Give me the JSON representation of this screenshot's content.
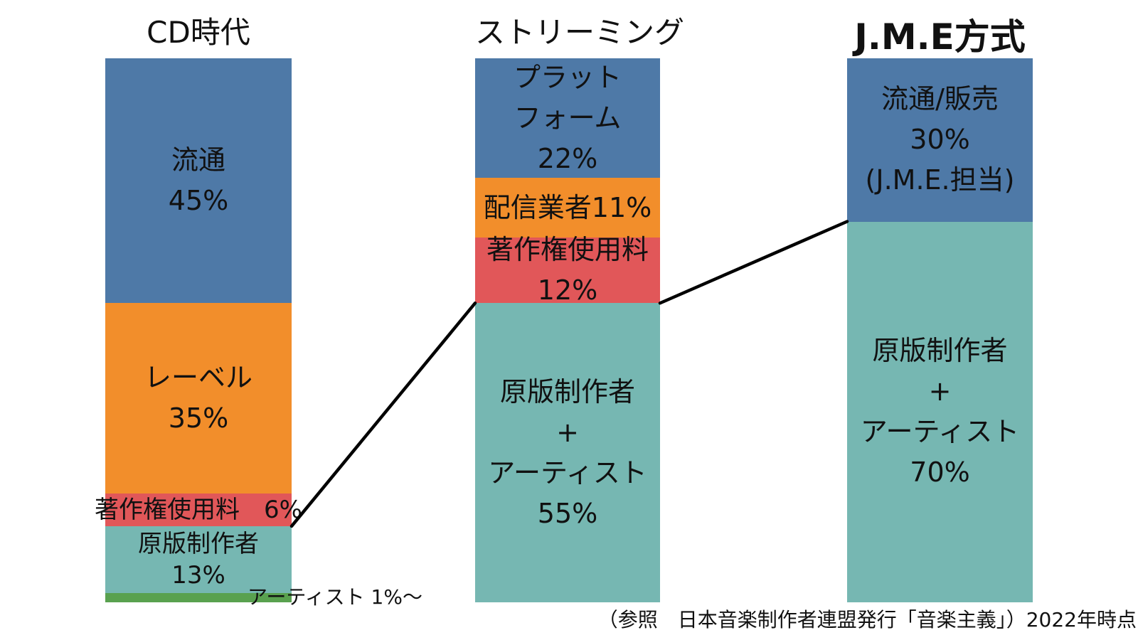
{
  "chart_data": {
    "type": "bar",
    "subtype": "100%-stacked-vertical",
    "unit": "%",
    "axis": "none",
    "legend": "none",
    "palette": {
      "blue": "#4e79a7",
      "orange": "#f28e2b",
      "red": "#e15759",
      "teal": "#76b7b2",
      "green": "#59a14f",
      "connector": "#000000"
    },
    "bars": [
      {
        "title": "CD時代",
        "segments": [
          {
            "name": "流通",
            "pct": 45,
            "draw_pct": 45,
            "color": "blue",
            "lines": [
              "流通",
              "45%"
            ]
          },
          {
            "name": "レーベル",
            "pct": 35,
            "draw_pct": 35,
            "color": "orange",
            "lines": [
              "レーベル",
              "35%"
            ]
          },
          {
            "name": "著作権使用料",
            "pct": 6,
            "draw_pct": 6,
            "color": "red",
            "lines": [
              "著作権使用料　6%"
            ]
          },
          {
            "name": "原版制作者",
            "pct": 13,
            "draw_pct": 12.3,
            "color": "teal",
            "lines": [
              "原版制作者",
              "13%"
            ]
          },
          {
            "name": "アーティスト",
            "pct": 1,
            "draw_pct": 1.7,
            "color": "green",
            "lines": [],
            "outside_label": "アーティスト 1%～"
          }
        ]
      },
      {
        "title": "ストリーミング",
        "segments": [
          {
            "name": "プラットフォーム",
            "pct": 22,
            "draw_pct": 22,
            "color": "blue",
            "lines": [
              "プラット",
              "フォーム",
              "22%"
            ]
          },
          {
            "name": "配信業者",
            "pct": 11,
            "draw_pct": 11,
            "color": "orange",
            "lines": [
              "配信業者11%"
            ]
          },
          {
            "name": "著作権使用料",
            "pct": 12,
            "draw_pct": 12,
            "color": "red",
            "lines": [
              "著作権使用料",
              "12%"
            ]
          },
          {
            "name": "原版制作者+アーティスト",
            "pct": 55,
            "draw_pct": 55,
            "color": "teal",
            "lines": [
              "原版制作者",
              "+",
              "アーティスト",
              "55%"
            ]
          }
        ]
      },
      {
        "title": "J.M.E方式",
        "segments": [
          {
            "name": "流通/販売",
            "pct": 30,
            "draw_pct": 30,
            "color": "blue",
            "lines": [
              "流通/販売",
              "30%",
              "(J.M.E.担当)"
            ]
          },
          {
            "name": "原版制作者+アーティスト",
            "pct": 70,
            "draw_pct": 70,
            "color": "teal",
            "lines": [
              "原版制作者",
              "+",
              "アーティスト",
              "70%"
            ]
          }
        ]
      }
    ],
    "connectors": [
      {
        "from": {
          "bar": 0,
          "segment": 3
        },
        "to": {
          "bar": 1,
          "segment": 3
        }
      },
      {
        "from": {
          "bar": 1,
          "segment": 3
        },
        "to": {
          "bar": 2,
          "segment": 1
        }
      }
    ],
    "footnote": "（参照　日本音楽制作者連盟発行「音楽主義」）2022年時点"
  }
}
